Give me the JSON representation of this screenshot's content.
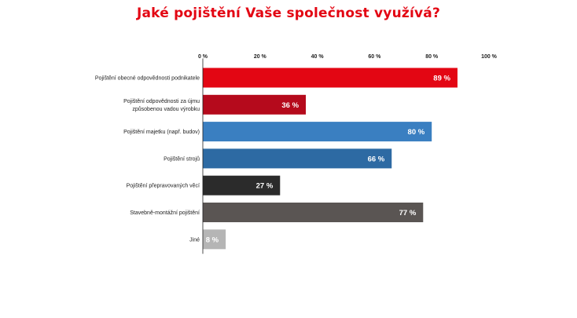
{
  "chart_data": {
    "type": "bar",
    "orientation": "horizontal",
    "title": "Jaké pojištění Vaše společnost využívá?",
    "xlabel": "",
    "ylabel": "",
    "xlim": [
      0,
      100
    ],
    "grid": false,
    "x_ticks": [
      0,
      20,
      40,
      60,
      80,
      100
    ],
    "x_tick_labels": [
      "0 %",
      "20 %",
      "40 %",
      "60 %",
      "80 %",
      "100 %"
    ],
    "categories": [
      [
        "Pojištění obecné odpovědnosti podnikatele"
      ],
      [
        "Pojištění odpovědnosti za újmu",
        "způsobenou vadou výrobku"
      ],
      [
        "Pojištění majetku (např. budov)"
      ],
      [
        "Pojištění strojů"
      ],
      [
        "Pojištění přepravovaných věcí"
      ],
      [
        "Stavebně-montážní pojištění"
      ],
      [
        "Jiné"
      ]
    ],
    "values": [
      89,
      36,
      80,
      66,
      27,
      77,
      8
    ],
    "value_labels": [
      "89 %",
      "36 %",
      "80 %",
      "66 %",
      "27 %",
      "77 %",
      "8 %"
    ],
    "colors": [
      "#e30613",
      "#b50a1c",
      "#3a7fc1",
      "#2d6aa3",
      "#2b2b2b",
      "#5a5553",
      "#b5b5b5"
    ]
  }
}
